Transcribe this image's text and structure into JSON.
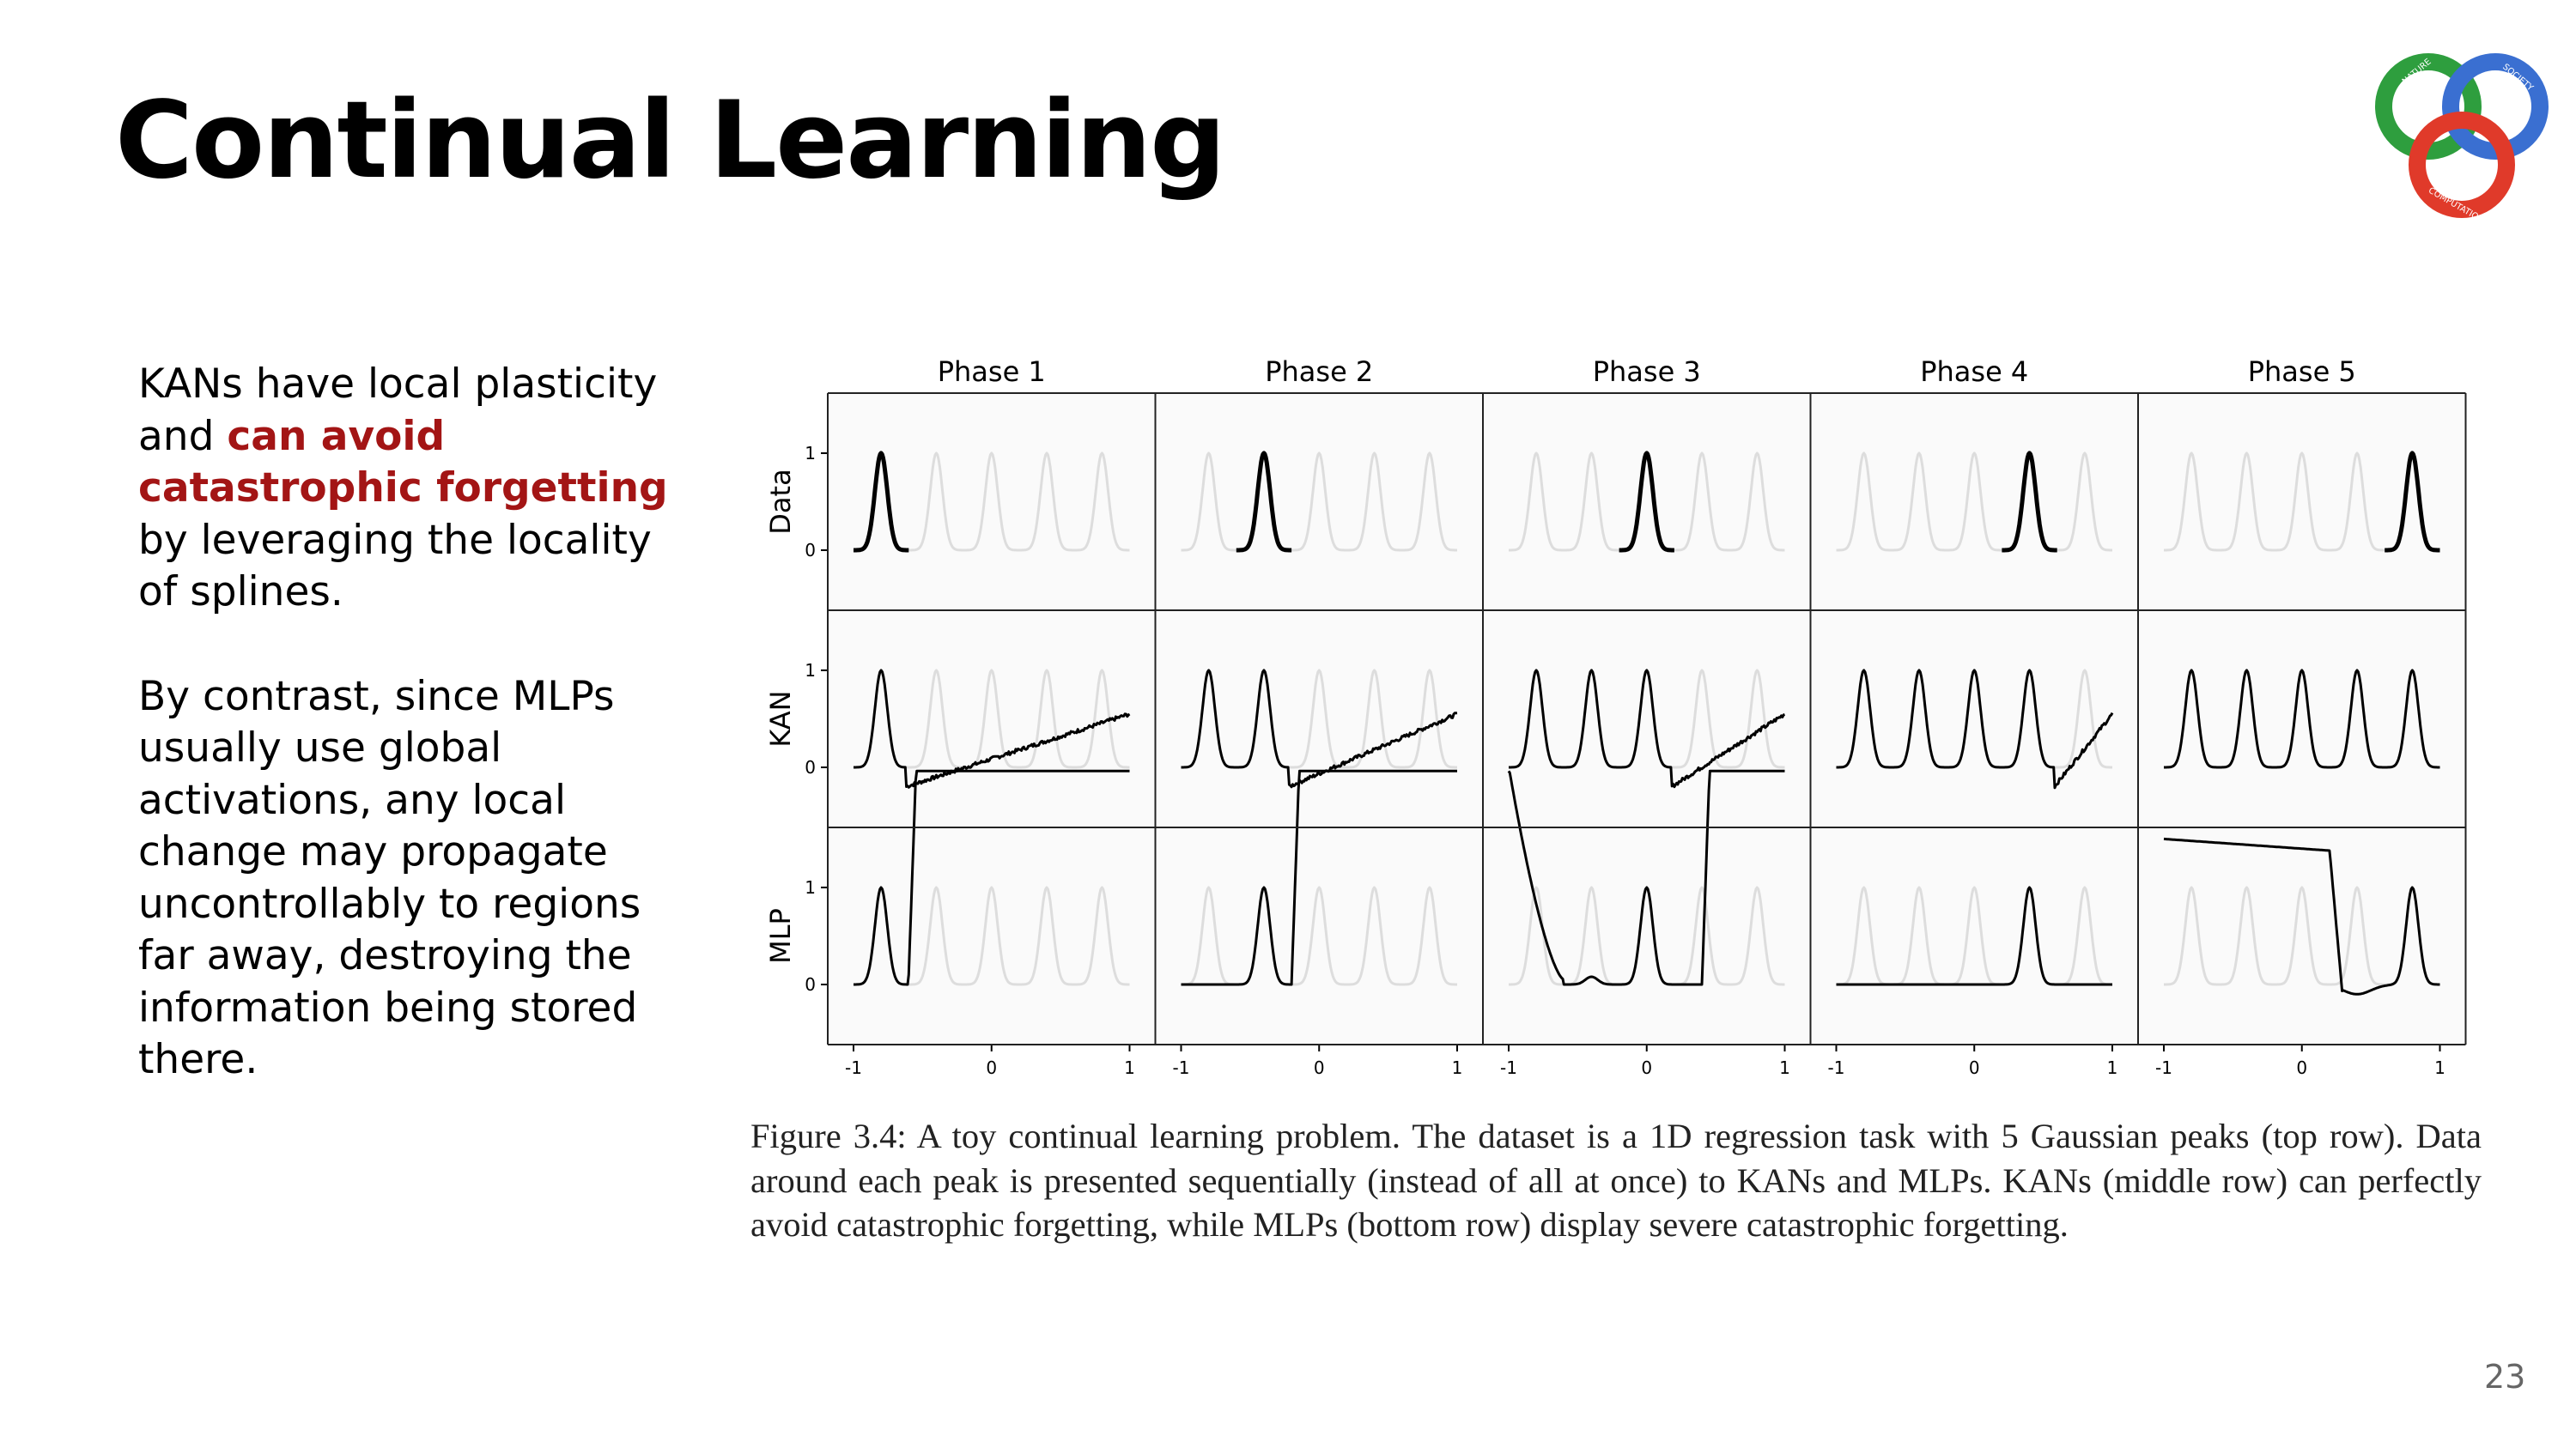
{
  "slide": {
    "title": "Continual Learning",
    "page_number": "23"
  },
  "body": {
    "p1_pre": "KANs have local plasticity and ",
    "p1_highlight": "can avoid catastrophic forgetting",
    "p1_post": " by leveraging the locality of splines.",
    "p2": "By contrast, since MLPs usually use global activations, any local change may propagate uncontrollably to regions far away, destroying the information being stored there.",
    "highlight_color": "#a31515"
  },
  "logo": {
    "words": [
      "NATURE",
      "SOCIETY",
      "COMPUTATION"
    ],
    "colors": [
      "#2e9e3e",
      "#3a6fd1",
      "#e03a2a"
    ]
  },
  "figure": {
    "columns": [
      "Phase 1",
      "Phase 2",
      "Phase 3",
      "Phase 4",
      "Phase 5"
    ],
    "rows": [
      "Data",
      "KAN",
      "MLP"
    ],
    "x_ticks": [
      "-1",
      "0",
      "1"
    ],
    "y_ticks": [
      "1",
      "0"
    ],
    "caption": "Figure 3.4: A toy continual learning problem. The dataset is a 1D regression task with 5 Gaussian peaks (top row). Data around each peak is presented sequentially (instead of all at once) to KANs and MLPs. KANs (middle row) can perfectly avoid catastrophic forgetting, while MLPs (bottom row) display severe catastrophic forgetting."
  },
  "chart_data": {
    "type": "line",
    "x_range": [
      -1,
      1
    ],
    "y_ticks_shown": [
      0,
      1
    ],
    "peak_centers": [
      -0.8,
      -0.4,
      0.0,
      0.4,
      0.8
    ],
    "description_rows": [
      "Data",
      "KAN",
      "MLP"
    ],
    "phases": [
      "Phase 1",
      "Phase 2",
      "Phase 3",
      "Phase 4",
      "Phase 5"
    ],
    "kan_learned_peaks_per_phase": [
      1,
      2,
      3,
      4,
      5
    ],
    "colors": {
      "active": "#000000",
      "ghost": "#dddddd",
      "panel_bg": "#fafafa"
    }
  }
}
